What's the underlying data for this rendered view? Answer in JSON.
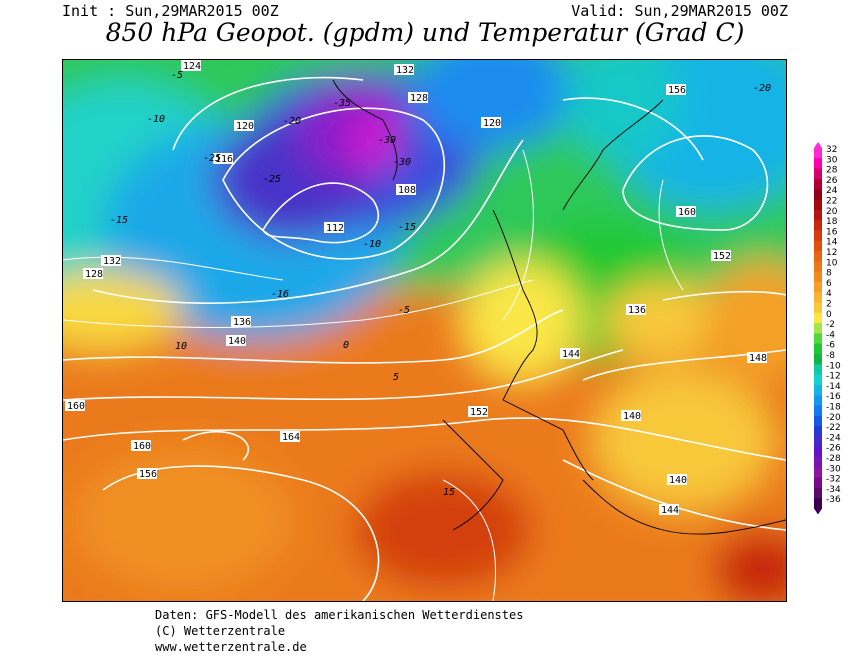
{
  "header": {
    "init": "Init : Sun,29MAR2015 00Z",
    "valid": "Valid: Sun,29MAR2015 00Z",
    "title": "850 hPa Geopot. (gpdm) und Temperatur (Grad C)"
  },
  "legend": {
    "values": [
      "32",
      "30",
      "28",
      "26",
      "24",
      "22",
      "20",
      "18",
      "16",
      "14",
      "12",
      "10",
      "8",
      "6",
      "4",
      "2",
      "0",
      "-2",
      "-4",
      "-6",
      "-8",
      "-10",
      "-12",
      "-14",
      "-16",
      "-18",
      "-20",
      "-22",
      "-24",
      "-26",
      "-28",
      "-30",
      "-32",
      "-34",
      "-36"
    ],
    "colors": [
      "#ff2ad4",
      "#ff00b0",
      "#d4006e",
      "#b00030",
      "#8c0018",
      "#a00a0a",
      "#b41414",
      "#c82810",
      "#d43c10",
      "#e05010",
      "#e66414",
      "#eb7818",
      "#f08c1e",
      "#f4a028",
      "#f8b432",
      "#f8c83a",
      "#fae646",
      "#a0e84a",
      "#50d83c",
      "#1ec832",
      "#14b446",
      "#14c8a0",
      "#14d2d2",
      "#14b4e6",
      "#1496f0",
      "#1478f0",
      "#145ae6",
      "#2838d2",
      "#4628c8",
      "#6414c8",
      "#7814b4",
      "#8c14a0",
      "#7a0a8c",
      "#5a0a6e",
      "#3c0050"
    ]
  },
  "map": {
    "height_labels": [
      "124",
      "132",
      "128",
      "120",
      "116",
      "108",
      "112",
      "132",
      "128",
      "136",
      "140",
      "160",
      "164",
      "156",
      "160",
      "152",
      "144",
      "148",
      "136",
      "140",
      "120",
      "156",
      "152",
      "160",
      "144",
      "140"
    ],
    "temp_labels": [
      "-5",
      "-10",
      "-15",
      "-20",
      "-25",
      "-30",
      "-35",
      "-16",
      "-15",
      "-10",
      "-5",
      "0",
      "5",
      "10",
      "15",
      "-20",
      "-25",
      "-30"
    ]
  },
  "credits": {
    "line1": "Daten: GFS-Modell des amerikanischen Wetterdienstes",
    "line2": "(C) Wetterzentrale",
    "line3": "www.wetterzentrale.de"
  }
}
